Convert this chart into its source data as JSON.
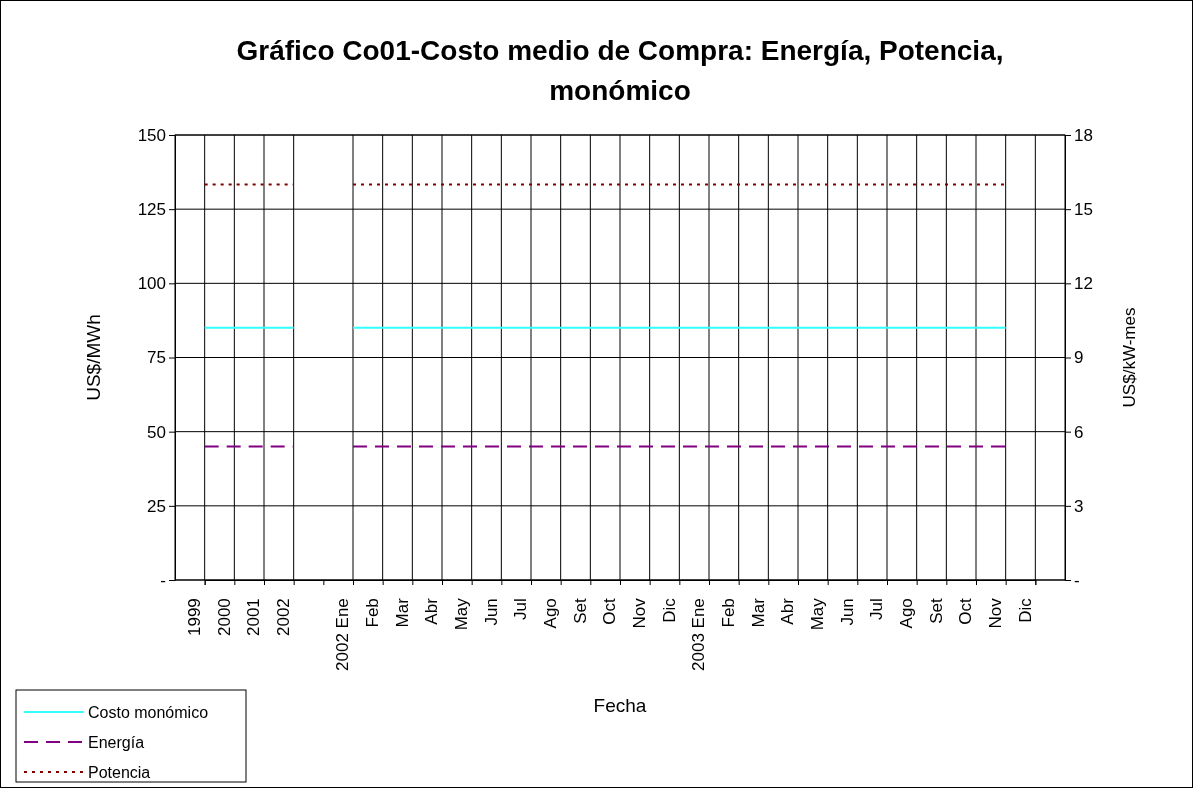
{
  "chart_data": {
    "type": "line",
    "title": "Gráfico Co01-Costo medio de Compra: Energía, Potencia, monómico",
    "xlabel": "Fecha",
    "ylabel": "US$/MWh",
    "y2label": "US$/kW-mes",
    "categories": [
      "1999",
      "2000",
      "2001",
      "2002",
      null,
      "2002 Ene",
      "Feb",
      "Mar",
      "Abr",
      "May",
      "Jun",
      "Jul",
      "Ago",
      "Set",
      "Oct",
      "Nov",
      "Dic",
      "2003 Ene",
      "Feb",
      "Mar",
      "Abr",
      "May",
      "Jun",
      "Jul",
      "Ago",
      "Set",
      "Oct",
      "Nov",
      "Dic"
    ],
    "series": [
      {
        "name": "Costo monómico",
        "color": "#33ffff",
        "line_style": "solid",
        "values": [
          85,
          85,
          85,
          85,
          null,
          85,
          85,
          85,
          85,
          85,
          85,
          85,
          85,
          85,
          85,
          85,
          85,
          85,
          85,
          85,
          85,
          85,
          85,
          85,
          85,
          85,
          85,
          85,
          null
        ]
      },
      {
        "name": "Energía",
        "color": "#800080",
        "line_style": "dashed",
        "values": [
          45,
          45,
          45,
          45,
          null,
          45,
          45,
          45,
          45,
          45,
          45,
          45,
          45,
          45,
          45,
          45,
          45,
          45,
          45,
          45,
          45,
          45,
          45,
          45,
          45,
          45,
          45,
          45,
          null
        ]
      },
      {
        "name": "Potencia",
        "color": "#800000",
        "line_style": "dotted",
        "axis": "y2",
        "values": [
          16,
          16,
          16,
          16,
          null,
          16,
          16,
          16,
          16,
          16,
          16,
          16,
          16,
          16,
          16,
          16,
          16,
          16,
          16,
          16,
          16,
          16,
          16,
          16,
          16,
          16,
          16,
          16,
          null
        ]
      }
    ],
    "ylim": [
      0,
      150
    ],
    "yticks": [
      {
        "value": 0,
        "label": "-"
      },
      25,
      50,
      75,
      100,
      125,
      150
    ],
    "y2lim": [
      0,
      18
    ],
    "y2ticks": [
      {
        "value": 0,
        "label": "-"
      },
      3,
      6,
      9,
      12,
      15,
      18
    ],
    "grid": true,
    "legend": "bottom left",
    "marker": "none"
  }
}
